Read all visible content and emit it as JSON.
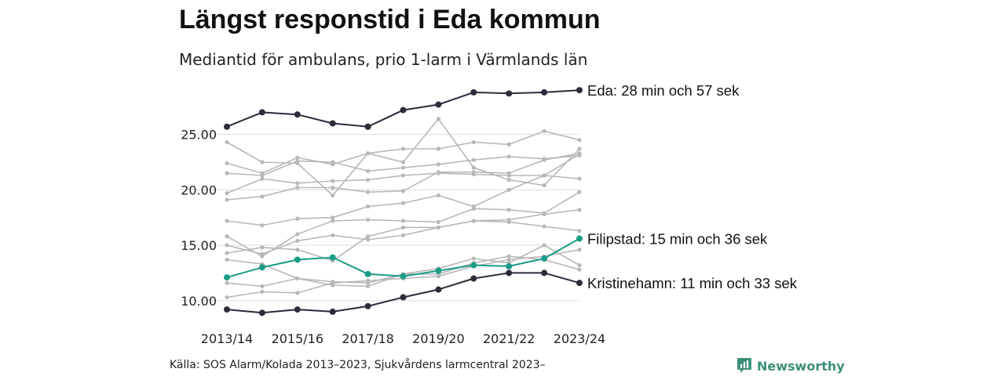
{
  "header": {
    "title": "Längst responstid i Eda kommun",
    "subtitle": "Mediantid för ambulans, prio 1-larm i Värmlands län"
  },
  "footer": {
    "source": "Källa: SOS Alarm/Kolada 2013–2023, Sjukvårdens larmcentral 2023–",
    "brand": "Newsworthy",
    "brand_icon": "bar-chart-speech-bubble-icon"
  },
  "colors": {
    "highlight_dark": "#2b2b3a",
    "highlight_teal": "#1a9c86",
    "background_series": "#b8b8b8",
    "grid": "#dddddd",
    "brand": "#3d8f7a"
  },
  "chart_data": {
    "type": "line",
    "categories": [
      "2013/14",
      "2014/15",
      "2015/16",
      "2016/17",
      "2017/18",
      "2018/19",
      "2019/20",
      "2020/21",
      "2021/22",
      "2022/23",
      "2023/24"
    ],
    "x_tick_labels": [
      "2013/14",
      "2015/16",
      "2017/18",
      "2019/20",
      "2021/22",
      "2023/24"
    ],
    "y_tick_labels": [
      "10.00",
      "15.00",
      "20.00",
      "25.00"
    ],
    "y_ticks": [
      10,
      15,
      20,
      25
    ],
    "ylim": [
      8.5,
      29.5
    ],
    "grid": true,
    "highlighted": [
      {
        "name": "Eda",
        "label": "Eda: 28 min och 57 sek",
        "color": "#2b2b3a",
        "values": [
          25.7,
          27.0,
          26.8,
          26.0,
          25.7,
          27.2,
          27.7,
          28.8,
          28.7,
          28.8,
          29.0
        ]
      },
      {
        "name": "Filipstad",
        "label": "Filipstad: 15 min och 36 sek",
        "color": "#1a9c86",
        "values": [
          12.1,
          13.0,
          13.7,
          13.9,
          12.4,
          12.2,
          12.7,
          13.2,
          13.1,
          13.8,
          15.6
        ]
      },
      {
        "name": "Kristinehamn",
        "label": "Kristinehamn: 11 min och 33 sek",
        "color": "#2b2b3a",
        "values": [
          9.2,
          8.9,
          9.2,
          9.0,
          9.5,
          10.3,
          11.0,
          12.0,
          12.5,
          12.5,
          11.6
        ]
      }
    ],
    "background_series": [
      [
        24.3,
        22.5,
        22.4,
        19.5,
        23.3,
        22.5,
        26.4,
        22.0,
        20.9,
        20.4,
        23.7
      ],
      [
        22.4,
        21.5,
        22.9,
        22.3,
        23.3,
        23.7,
        23.7,
        24.3,
        24.1,
        25.3,
        24.5
      ],
      [
        21.5,
        21.3,
        22.6,
        22.5,
        21.7,
        22.0,
        22.3,
        22.7,
        23.0,
        22.8,
        23.1
      ],
      [
        19.7,
        21.0,
        20.6,
        20.8,
        20.9,
        21.3,
        21.5,
        21.4,
        21.3,
        21.3,
        21.0
      ],
      [
        19.1,
        19.4,
        20.2,
        20.2,
        19.8,
        19.9,
        21.6,
        21.6,
        21.5,
        22.7,
        23.3
      ],
      [
        17.2,
        16.8,
        17.4,
        17.5,
        18.5,
        18.8,
        19.5,
        18.5,
        20.0,
        21.3,
        23.2
      ],
      [
        15.8,
        14.0,
        16.0,
        17.2,
        17.3,
        17.2,
        17.1,
        18.3,
        18.2,
        17.9,
        19.8
      ],
      [
        15.0,
        14.2,
        15.4,
        15.9,
        15.5,
        15.9,
        16.6,
        17.2,
        17.3,
        17.8,
        18.2
      ],
      [
        14.3,
        14.8,
        14.6,
        13.6,
        15.8,
        16.6,
        16.6,
        17.2,
        17.1,
        16.7,
        16.3
      ],
      [
        13.7,
        13.3,
        12.0,
        11.7,
        11.6,
        12.4,
        12.9,
        13.8,
        13.4,
        15.0,
        13.2
      ],
      [
        11.6,
        11.3,
        12.0,
        11.4,
        11.3,
        12.4,
        12.4,
        13.4,
        14.0,
        13.7,
        12.8
      ],
      [
        10.3,
        10.8,
        10.7,
        11.6,
        11.8,
        12.0,
        12.2,
        13.1,
        13.7,
        14.0,
        14.6
      ]
    ]
  }
}
